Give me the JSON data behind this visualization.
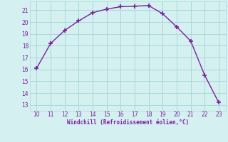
{
  "x": [
    10,
    11,
    12,
    13,
    14,
    15,
    16,
    17,
    18,
    19,
    20,
    21,
    22,
    23
  ],
  "y": [
    16.1,
    18.2,
    19.3,
    20.1,
    20.8,
    21.1,
    21.3,
    21.35,
    21.4,
    20.7,
    19.6,
    18.4,
    15.5,
    13.2
  ],
  "line_color": "#7b1fa2",
  "marker_color": "#7b1fa2",
  "bg_color": "#d4f0f0",
  "grid_color": "#a8d8d8",
  "xlabel": "Windchill (Refroidissement éolien,°C)",
  "xlabel_color": "#7b1fa2",
  "xlim": [
    9.5,
    23.5
  ],
  "ylim": [
    12.5,
    21.75
  ],
  "xticks": [
    10,
    11,
    12,
    13,
    14,
    15,
    16,
    17,
    18,
    19,
    20,
    21,
    22,
    23
  ],
  "yticks": [
    13,
    14,
    15,
    16,
    17,
    18,
    19,
    20,
    21
  ],
  "tick_color": "#7b1fa2",
  "figsize": [
    3.2,
    2.0
  ],
  "dpi": 100
}
